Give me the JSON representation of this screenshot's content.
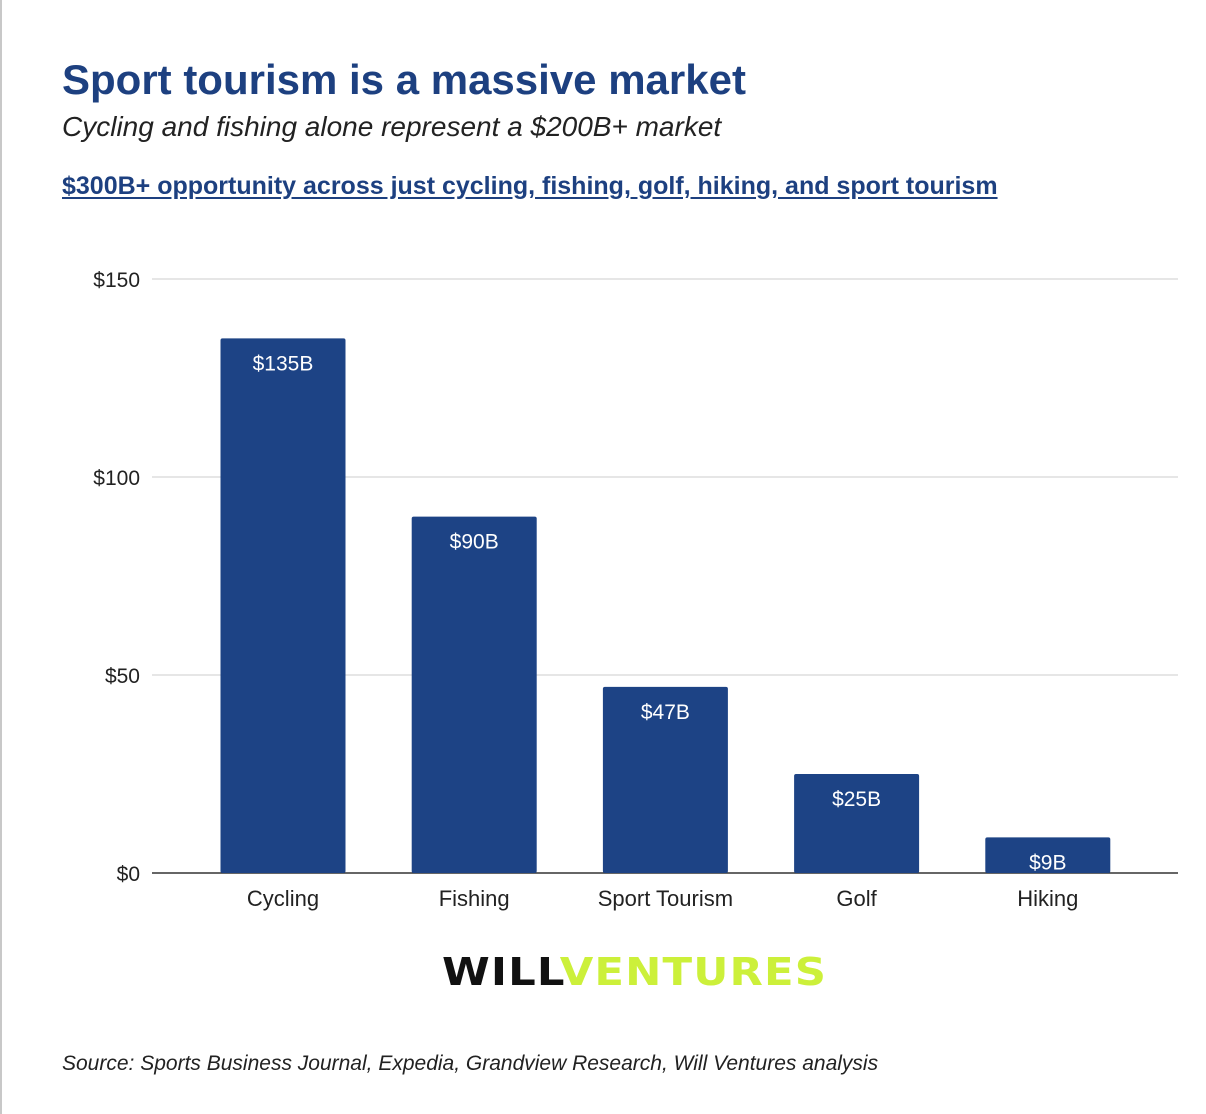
{
  "header": {
    "title": "Sport tourism is a massive market",
    "subtitle": "Cycling and fishing alone represent a $200B+ market",
    "link_text": "$300B+ opportunity across just cycling, fishing, golf, hiking, and sport tourism"
  },
  "chart_data": {
    "type": "bar",
    "categories": [
      "Cycling",
      "Fishing",
      "Sport Tourism",
      "Golf",
      "Hiking"
    ],
    "values": [
      135,
      90,
      47,
      25,
      9
    ],
    "data_labels": [
      "$135B",
      "$90B",
      "$47B",
      "$25B",
      "$9B"
    ],
    "y_ticks": [
      0,
      50,
      100,
      150
    ],
    "y_tick_labels": [
      "$0",
      "$50",
      "$100",
      "$150"
    ],
    "ylim": [
      0,
      150
    ],
    "grid": true,
    "legend": "none",
    "bar_color": "#1d4385",
    "label_color": "#ffffff"
  },
  "logo": {
    "part1": "WILL",
    "part2": "VENTURES",
    "color1": "#111111",
    "color2": "#ccf03a"
  },
  "footer": {
    "source": "Source: Sports Business Journal, Expedia, Grandview Research, Will Ventures analysis"
  }
}
